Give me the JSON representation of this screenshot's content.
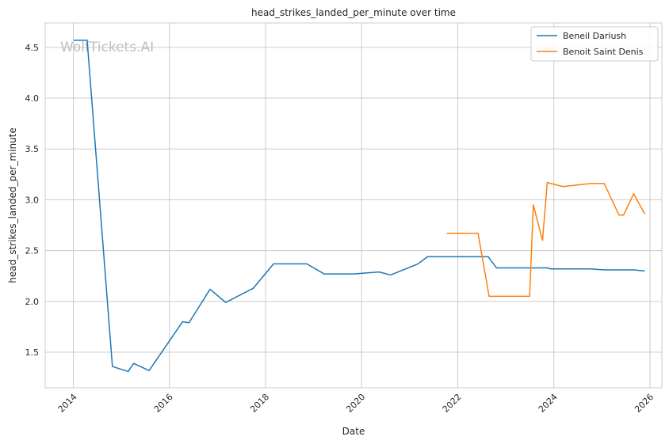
{
  "chart_data": {
    "type": "line",
    "title": "head_strikes_landed_per_minute over time",
    "xlabel": "Date",
    "ylabel": "head_strikes_landed_per_minute",
    "watermark": "WolfTickets.AI",
    "x_ticks": [
      "2014",
      "2016",
      "2018",
      "2020",
      "2022",
      "2024",
      "2026"
    ],
    "y_ticks": [
      "1.5",
      "2.0",
      "2.5",
      "3.0",
      "3.5",
      "4.0",
      "4.5"
    ],
    "xlim": [
      "2013-06-01",
      "2026-04-01"
    ],
    "ylim": [
      1.15,
      4.74
    ],
    "grid": true,
    "legend_position": "top-right",
    "series": [
      {
        "name": "Beneil Dariush",
        "color": "#1f77b4",
        "points": [
          [
            "2014-01-04",
            4.57
          ],
          [
            "2014-04-16",
            4.57
          ],
          [
            "2014-10-25",
            1.36
          ],
          [
            "2015-02-22",
            1.31
          ],
          [
            "2015-04-04",
            1.39
          ],
          [
            "2015-07-31",
            1.32
          ],
          [
            "2016-04-10",
            1.8
          ],
          [
            "2016-05-29",
            1.79
          ],
          [
            "2016-11-05",
            2.12
          ],
          [
            "2017-03-04",
            1.99
          ],
          [
            "2017-09-30",
            2.13
          ],
          [
            "2018-03-03",
            2.37
          ],
          [
            "2018-11-10",
            2.37
          ],
          [
            "2019-03-23",
            2.27
          ],
          [
            "2019-11-02",
            2.27
          ],
          [
            "2020-05-13",
            2.29
          ],
          [
            "2020-08-08",
            2.26
          ],
          [
            "2021-03-06",
            2.37
          ],
          [
            "2021-05-15",
            2.44
          ],
          [
            "2022-08-20",
            2.44
          ],
          [
            "2022-10-22",
            2.33
          ],
          [
            "2023-11-11",
            2.33
          ],
          [
            "2023-12-09",
            2.32
          ],
          [
            "2024-10-05",
            2.32
          ],
          [
            "2025-01-18",
            2.31
          ],
          [
            "2025-08-30",
            2.31
          ],
          [
            "2025-11-22",
            2.3
          ]
        ]
      },
      {
        "name": "Benoit Saint Denis",
        "color": "#ff7f0e",
        "points": [
          [
            "2021-10-09",
            2.67
          ],
          [
            "2022-06-04",
            2.67
          ],
          [
            "2022-08-27",
            2.05
          ],
          [
            "2023-07-01",
            2.05
          ],
          [
            "2023-07-29",
            2.95
          ],
          [
            "2023-10-07",
            2.6
          ],
          [
            "2023-11-12",
            3.17
          ],
          [
            "2024-03-09",
            3.13
          ],
          [
            "2024-10-05",
            3.16
          ],
          [
            "2025-01-18",
            3.16
          ],
          [
            "2025-05-10",
            2.85
          ],
          [
            "2025-06-14",
            2.85
          ],
          [
            "2025-08-30",
            3.06
          ],
          [
            "2025-11-22",
            2.86
          ]
        ]
      }
    ]
  }
}
